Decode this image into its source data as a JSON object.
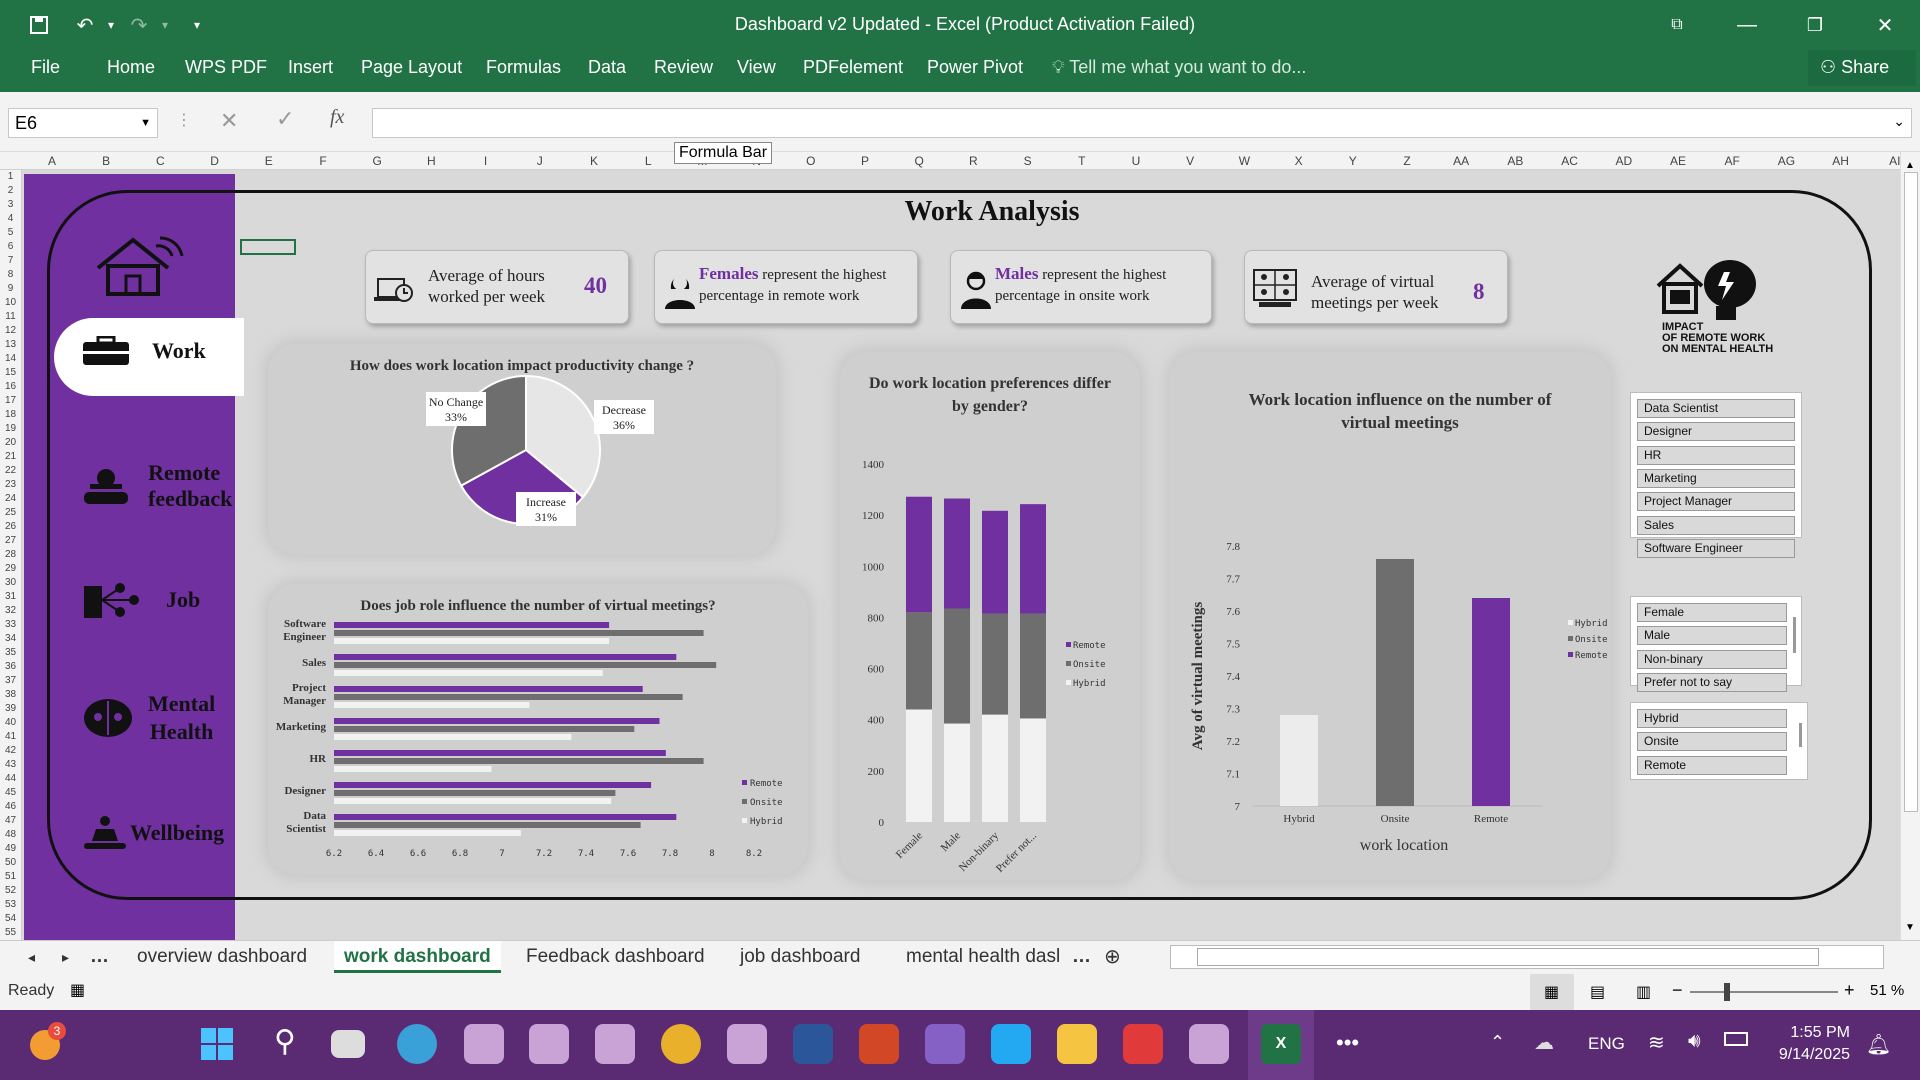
{
  "window": {
    "title": "Dashboard v2 Updated - Excel (Product Activation Failed)",
    "share": "Share"
  },
  "menu": [
    "File",
    "Home",
    "WPS PDF",
    "Insert",
    "Page Layout",
    "Formulas",
    "Data",
    "Review",
    "View",
    "PDFelement",
    "Power Pivot"
  ],
  "tell_me": "Tell me what you want to do...",
  "formula": {
    "cell": "E6",
    "tooltip": "Formula Bar",
    "fx": "fx"
  },
  "columns": [
    "A",
    "B",
    "C",
    "D",
    "E",
    "F",
    "G",
    "H",
    "I",
    "J",
    "K",
    "L",
    "M",
    "N",
    "O",
    "P",
    "Q",
    "R",
    "S",
    "T",
    "U",
    "V",
    "W",
    "X",
    "Y",
    "Z",
    "AA",
    "AB",
    "AC",
    "AD",
    "AE",
    "AF",
    "AG",
    "AH",
    "AI"
  ],
  "nav": {
    "work": "Work",
    "remote_1": "Remote",
    "remote_2": "feedback",
    "job": "Job",
    "mental_1": "Mental",
    "mental_2": "Health",
    "wellbeing": "Wellbeing"
  },
  "dashboard": {
    "title": "Work Analysis"
  },
  "kpis": {
    "hours_1": "Average of hours",
    "hours_2": "worked per week",
    "hours_value": "40",
    "females_word": "Females",
    "females_1": "represent the highest",
    "females_2": "percentage in remote work",
    "males_word": "Males",
    "males_1": "represent the highest",
    "males_2": "percentage in onsite work",
    "meetings_1": "Average of virtual",
    "meetings_2": "meetings per week",
    "meetings_value": "8"
  },
  "logo": {
    "line1": "IMPACT",
    "line2": "OF REMOTE WORK",
    "line3": "ON MENTAL HEALTH"
  },
  "colors": {
    "remote": "#7030a0",
    "onsite": "#6e6e6e",
    "hybrid": "#ececec",
    "excel_green": "#217346"
  },
  "chart_data": [
    {
      "type": "pie",
      "title": "How does work location impact productivity change ?",
      "slices": [
        {
          "label": "Decrease",
          "value": 36,
          "display": "36%",
          "color": "#e6e6e6"
        },
        {
          "label": "Increase",
          "value": 31,
          "display": "31%",
          "color": "#7030a0"
        },
        {
          "label": "No Change",
          "value": 33,
          "display": "33%",
          "color": "#6e6e6e"
        }
      ]
    },
    {
      "type": "bar",
      "orientation": "horizontal",
      "title": "Does job role influence the number of virtual meetings?",
      "categories": [
        "Software Engineer",
        "Sales",
        "Project Manager",
        "Marketing",
        "HR",
        "Designer",
        "Data Scientist"
      ],
      "series": [
        {
          "name": "Remote",
          "values": [
            7.51,
            7.83,
            7.67,
            7.75,
            7.78,
            7.71,
            7.83
          ]
        },
        {
          "name": "Onsite",
          "values": [
            7.96,
            8.02,
            7.86,
            7.63,
            7.96,
            7.54,
            7.66
          ]
        },
        {
          "name": "Hybrid",
          "values": [
            7.51,
            7.48,
            7.13,
            7.33,
            6.95,
            7.52,
            7.09
          ]
        }
      ],
      "xlim": [
        6.2,
        8.2
      ],
      "xticks": [
        "6.2",
        "6.4",
        "6.6",
        "6.8",
        "7",
        "7.2",
        "7.4",
        "7.6",
        "7.8",
        "8",
        "8.2"
      ]
    },
    {
      "type": "bar",
      "stacked": true,
      "title": "Do work location preferences differ by gender?",
      "categories": [
        "Female",
        "Male",
        "Non-binary",
        "Prefer not..."
      ],
      "series": [
        {
          "name": "Hybrid",
          "values": [
            440,
            385,
            420,
            405
          ]
        },
        {
          "name": "Onsite",
          "values": [
            380,
            450,
            395,
            410
          ]
        },
        {
          "name": "Remote",
          "values": [
            452,
            430,
            402,
            428
          ]
        }
      ],
      "ylim": [
        0,
        1400
      ],
      "yticks": [
        "0",
        "200",
        "400",
        "600",
        "800",
        "1000",
        "1200",
        "1400"
      ],
      "legend": [
        "Remote",
        "Onsite",
        "Hybrid"
      ]
    },
    {
      "type": "bar",
      "title": "Work location influence on the number of virtual meetings",
      "xlabel": "work location",
      "ylabel": "Avg of virtual meetings",
      "categories": [
        "Hybrid",
        "Onsite",
        "Remote"
      ],
      "values": [
        7.28,
        7.76,
        7.64
      ],
      "colors": [
        "#ececec",
        "#6e6e6e",
        "#7030a0"
      ],
      "ylim": [
        7,
        7.8
      ],
      "yticks": [
        "7",
        "7.1",
        "7.2",
        "7.3",
        "7.4",
        "7.5",
        "7.6",
        "7.7",
        "7.8"
      ],
      "legend": [
        "Hybrid",
        "Onsite",
        "Remote"
      ]
    }
  ],
  "slicers": {
    "job_roles": [
      "Data Scientist",
      "Designer",
      "HR",
      "Marketing",
      "Project Manager",
      "Sales",
      "Software Engineer"
    ],
    "genders": [
      "Female",
      "Male",
      "Non-binary",
      "Prefer not to say"
    ],
    "locations": [
      "Hybrid",
      "Onsite",
      "Remote"
    ]
  },
  "sheet_tabs": [
    "overview dashboard",
    "work dashboard",
    "Feedback dashboard",
    "job dashboard",
    "mental health dasl"
  ],
  "active_tab": "work dashboard",
  "status": {
    "ready": "Ready",
    "zoom": "51 %"
  },
  "taskbar": {
    "lang": "ENG",
    "time": "1:55 PM",
    "date": "9/14/2025",
    "badge": "3"
  }
}
